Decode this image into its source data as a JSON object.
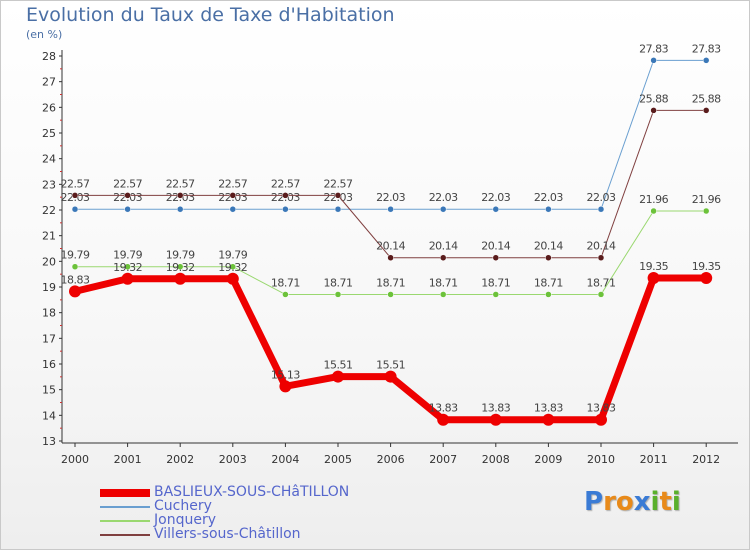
{
  "title": "Evolution du Taux de Taxe d'Habitation",
  "subtitle": "(en %)",
  "logo": {
    "letters": [
      {
        "ch": "P",
        "color": "#3a7bd5"
      },
      {
        "ch": "r",
        "color": "#e88a1a"
      },
      {
        "ch": "o",
        "color": "#e88a1a"
      },
      {
        "ch": "x",
        "color": "#3a7bd5"
      },
      {
        "ch": "i",
        "color": "#5ab02c"
      },
      {
        "ch": "t",
        "color": "#e88a1a"
      },
      {
        "ch": "i",
        "color": "#5ab02c"
      }
    ]
  },
  "chart_data": {
    "type": "line",
    "title": "Evolution du Taux de Taxe d'Habitation",
    "ylabel": "(en %)",
    "xlabel": "",
    "x": [
      "2000",
      "2001",
      "2002",
      "2003",
      "2004",
      "2005",
      "2006",
      "2007",
      "2008",
      "2009",
      "2010",
      "2011",
      "2012"
    ],
    "ylim": [
      13,
      28
    ],
    "yticks": [
      13,
      14,
      15,
      16,
      17,
      18,
      19,
      20,
      21,
      22,
      23,
      24,
      25,
      26,
      27,
      28
    ],
    "grid": false,
    "legend_position": "bottom-left",
    "series": [
      {
        "name": "BASLIEUX-SOUS-CHâTILLON",
        "color": "#ee0000",
        "marker": "#ee0000",
        "width": 7,
        "values": [
          18.83,
          19.32,
          19.32,
          19.32,
          15.13,
          15.51,
          15.51,
          13.83,
          13.83,
          13.83,
          13.83,
          19.35,
          19.35
        ],
        "labels": [
          "18.83",
          "19.32",
          "19.32",
          "19.32",
          "15.13",
          "15.51",
          "15.51",
          "13.83",
          "13.83",
          "13.83",
          "13.83",
          "19.35",
          "19.35"
        ]
      },
      {
        "name": "Cuchery",
        "color": "#6a9fd0",
        "marker": "#3b78b8",
        "width": 1,
        "values": [
          22.03,
          22.03,
          22.03,
          22.03,
          22.03,
          22.03,
          22.03,
          22.03,
          22.03,
          22.03,
          22.03,
          27.83,
          27.83
        ],
        "labels": [
          "22.03",
          "22.03",
          "22.03",
          "22.03",
          "22.03",
          "22.03",
          "22.03",
          "22.03",
          "22.03",
          "22.03",
          "22.03",
          "27.83",
          "27.83"
        ]
      },
      {
        "name": "Jonquery",
        "color": "#9ad870",
        "marker": "#6cc23a",
        "width": 1,
        "values": [
          19.79,
          19.79,
          19.79,
          19.79,
          18.71,
          18.71,
          18.71,
          18.71,
          18.71,
          18.71,
          18.71,
          21.96,
          21.96
        ],
        "labels": [
          "19.79",
          "19.79",
          "19.79",
          "19.79",
          "18.71",
          "18.71",
          "18.71",
          "18.71",
          "18.71",
          "18.71",
          "18.71",
          "21.96",
          "21.96"
        ]
      },
      {
        "name": "Villers-sous-Châtillon",
        "color": "#804040",
        "marker": "#5a1c1c",
        "width": 1,
        "values": [
          22.57,
          22.57,
          22.57,
          22.57,
          22.57,
          22.57,
          20.14,
          20.14,
          20.14,
          20.14,
          20.14,
          25.88,
          25.88
        ],
        "labels": [
          "22.57",
          "22.57",
          "22.57",
          "22.57",
          "22.57",
          "22.57",
          "20.14",
          "20.14",
          "20.14",
          "20.14",
          "20.14",
          "25.88",
          "25.88"
        ]
      }
    ]
  }
}
